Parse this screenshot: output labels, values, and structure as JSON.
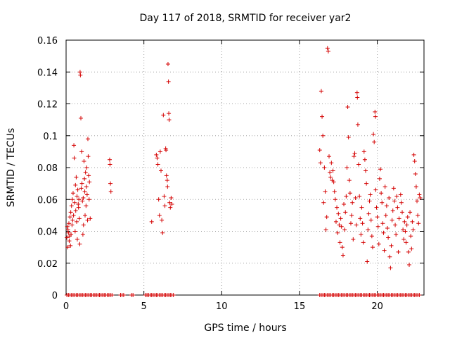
{
  "chart_data": {
    "type": "scatter",
    "title": "Day 117 of 2018, SRMTID for receiver yar2",
    "xlabel": "GPS time / hours",
    "ylabel": "SRMTID / TECUs",
    "xlim": [
      0,
      23
    ],
    "ylim": [
      0,
      0.16
    ],
    "x_ticks": [
      0,
      5,
      10,
      15,
      20
    ],
    "x_tick_labels": [
      "0",
      "5",
      "10",
      "15",
      "20"
    ],
    "y_ticks": [
      0,
      0.02,
      0.04,
      0.06,
      0.08,
      0.1,
      0.12,
      0.14,
      0.16
    ],
    "y_tick_labels": [
      "0",
      "0.02",
      "0.04",
      "0.06",
      "0.08",
      "0.1",
      "0.12",
      "0.14",
      "0.16"
    ],
    "grid": true,
    "marker": "+",
    "series": [
      {
        "name": "yar2",
        "color": "#d40000",
        "points": [
          [
            0.05,
            0.036
          ],
          [
            0.08,
            0.043
          ],
          [
            0.1,
            0.03
          ],
          [
            0.12,
            0.041
          ],
          [
            0.15,
            0.039
          ],
          [
            0.18,
            0.045
          ],
          [
            0.2,
            0.034
          ],
          [
            0.22,
            0.037
          ],
          [
            0.25,
            0.049
          ],
          [
            0.28,
            0.031
          ],
          [
            0.3,
            0.052
          ],
          [
            0.32,
            0.038
          ],
          [
            0.35,
            0.056
          ],
          [
            0.38,
            0.044
          ],
          [
            0.4,
            0.06
          ],
          [
            0.42,
            0.047
          ],
          [
            0.45,
            0.064
          ],
          [
            0.48,
            0.05
          ],
          [
            0.5,
            0.094
          ],
          [
            0.52,
            0.086
          ],
          [
            0.55,
            0.058
          ],
          [
            0.58,
            0.04
          ],
          [
            0.6,
            0.069
          ],
          [
            0.62,
            0.053
          ],
          [
            0.65,
            0.074
          ],
          [
            0.68,
            0.046
          ],
          [
            0.7,
            0.062
          ],
          [
            0.72,
            0.035
          ],
          [
            0.75,
            0.066
          ],
          [
            0.78,
            0.057
          ],
          [
            0.8,
            0.055
          ],
          [
            0.82,
            0.06
          ],
          [
            0.85,
            0.048
          ],
          [
            0.88,
            0.032
          ],
          [
            0.9,
            0.14
          ],
          [
            0.92,
            0.138
          ],
          [
            0.95,
            0.111
          ],
          [
            0.97,
            0.067
          ],
          [
            1.0,
            0.09
          ],
          [
            1.02,
            0.07
          ],
          [
            1.05,
            0.059
          ],
          [
            1.08,
            0.038
          ],
          [
            1.1,
            0.061
          ],
          [
            1.12,
            0.044
          ],
          [
            1.15,
            0.084
          ],
          [
            1.18,
            0.073
          ],
          [
            1.2,
            0.065
          ],
          [
            1.22,
            0.05
          ],
          [
            1.25,
            0.077
          ],
          [
            1.28,
            0.056
          ],
          [
            1.3,
            0.068
          ],
          [
            1.32,
            0.08
          ],
          [
            1.35,
            0.063
          ],
          [
            1.38,
            0.047
          ],
          [
            1.4,
            0.098
          ],
          [
            1.42,
            0.087
          ],
          [
            1.45,
            0.075
          ],
          [
            1.48,
            0.06
          ],
          [
            1.5,
            0.071
          ],
          [
            1.55,
            0.048
          ],
          [
            2.8,
            0.085
          ],
          [
            2.82,
            0.082
          ],
          [
            2.85,
            0.07
          ],
          [
            2.88,
            0.065
          ],
          [
            5.5,
            0.046
          ],
          [
            5.8,
            0.088
          ],
          [
            5.85,
            0.086
          ],
          [
            5.9,
            0.082
          ],
          [
            5.95,
            0.06
          ],
          [
            6.0,
            0.05
          ],
          [
            6.05,
            0.09
          ],
          [
            6.1,
            0.078
          ],
          [
            6.15,
            0.047
          ],
          [
            6.2,
            0.039
          ],
          [
            6.25,
            0.113
          ],
          [
            6.3,
            0.062
          ],
          [
            6.35,
            0.056
          ],
          [
            6.4,
            0.092
          ],
          [
            6.42,
            0.091
          ],
          [
            6.45,
            0.075
          ],
          [
            6.5,
            0.072
          ],
          [
            6.52,
            0.068
          ],
          [
            6.55,
            0.145
          ],
          [
            6.58,
            0.134
          ],
          [
            6.6,
            0.114
          ],
          [
            6.62,
            0.11
          ],
          [
            6.65,
            0.058
          ],
          [
            6.7,
            0.055
          ],
          [
            6.75,
            0.061
          ],
          [
            6.8,
            0.057
          ],
          [
            16.3,
            0.091
          ],
          [
            16.35,
            0.083
          ],
          [
            16.4,
            0.128
          ],
          [
            16.45,
            0.112
          ],
          [
            16.5,
            0.1
          ],
          [
            16.55,
            0.058
          ],
          [
            16.6,
            0.08
          ],
          [
            16.65,
            0.065
          ],
          [
            16.7,
            0.041
          ],
          [
            16.75,
            0.049
          ],
          [
            16.8,
            0.155
          ],
          [
            16.85,
            0.153
          ],
          [
            16.9,
            0.087
          ],
          [
            16.95,
            0.077
          ],
          [
            17.0,
            0.074
          ],
          [
            17.05,
            0.083
          ],
          [
            17.1,
            0.072
          ],
          [
            17.15,
            0.078
          ],
          [
            17.2,
            0.071
          ],
          [
            17.25,
            0.065
          ],
          [
            17.3,
            0.06
          ],
          [
            17.35,
            0.046
          ],
          [
            17.4,
            0.055
          ],
          [
            17.45,
            0.039
          ],
          [
            17.5,
            0.051
          ],
          [
            17.55,
            0.044
          ],
          [
            17.6,
            0.033
          ],
          [
            17.65,
            0.048
          ],
          [
            17.7,
            0.043
          ],
          [
            17.75,
            0.03
          ],
          [
            17.8,
            0.025
          ],
          [
            17.85,
            0.057
          ],
          [
            17.9,
            0.041
          ],
          [
            17.95,
            0.052
          ],
          [
            18.0,
            0.062
          ],
          [
            18.05,
            0.08
          ],
          [
            18.1,
            0.118
          ],
          [
            18.15,
            0.099
          ],
          [
            18.2,
            0.072
          ],
          [
            18.25,
            0.064
          ],
          [
            18.3,
            0.045
          ],
          [
            18.35,
            0.05
          ],
          [
            18.4,
            0.058
          ],
          [
            18.45,
            0.035
          ],
          [
            18.5,
            0.087
          ],
          [
            18.55,
            0.089
          ],
          [
            18.6,
            0.061
          ],
          [
            18.65,
            0.044
          ],
          [
            18.7,
            0.127
          ],
          [
            18.72,
            0.124
          ],
          [
            18.75,
            0.107
          ],
          [
            18.8,
            0.082
          ],
          [
            18.85,
            0.062
          ],
          [
            18.9,
            0.048
          ],
          [
            18.95,
            0.038
          ],
          [
            19.0,
            0.055
          ],
          [
            19.05,
            0.045
          ],
          [
            19.1,
            0.033
          ],
          [
            19.15,
            0.09
          ],
          [
            19.2,
            0.085
          ],
          [
            19.25,
            0.078
          ],
          [
            19.3,
            0.07
          ],
          [
            19.35,
            0.021
          ],
          [
            19.4,
            0.041
          ],
          [
            19.45,
            0.051
          ],
          [
            19.5,
            0.059
          ],
          [
            19.55,
            0.063
          ],
          [
            19.6,
            0.047
          ],
          [
            19.65,
            0.037
          ],
          [
            19.7,
            0.03
          ],
          [
            19.75,
            0.101
          ],
          [
            19.8,
            0.096
          ],
          [
            19.85,
            0.115
          ],
          [
            19.88,
            0.112
          ],
          [
            19.9,
            0.066
          ],
          [
            19.95,
            0.055
          ],
          [
            20.0,
            0.049
          ],
          [
            20.05,
            0.043
          ],
          [
            20.1,
            0.032
          ],
          [
            20.15,
            0.073
          ],
          [
            20.2,
            0.079
          ],
          [
            20.25,
            0.064
          ],
          [
            20.3,
            0.058
          ],
          [
            20.35,
            0.045
          ],
          [
            20.4,
            0.039
          ],
          [
            20.45,
            0.028
          ],
          [
            20.5,
            0.068
          ],
          [
            20.55,
            0.05
          ],
          [
            20.6,
            0.056
          ],
          [
            20.65,
            0.042
          ],
          [
            20.7,
            0.036
          ],
          [
            20.75,
            0.061
          ],
          [
            20.8,
            0.024
          ],
          [
            20.85,
            0.017
          ],
          [
            20.9,
            0.031
          ],
          [
            20.95,
            0.047
          ],
          [
            21.0,
            0.053
          ],
          [
            21.05,
            0.067
          ],
          [
            21.1,
            0.059
          ],
          [
            21.15,
            0.044
          ],
          [
            21.2,
            0.038
          ],
          [
            21.25,
            0.062
          ],
          [
            21.3,
            0.055
          ],
          [
            21.35,
            0.027
          ],
          [
            21.4,
            0.048
          ],
          [
            21.5,
            0.063
          ],
          [
            21.55,
            0.058
          ],
          [
            21.6,
            0.052
          ],
          [
            21.65,
            0.041
          ],
          [
            21.7,
            0.035
          ],
          [
            21.75,
            0.046
          ],
          [
            21.8,
            0.04
          ],
          [
            21.85,
            0.033
          ],
          [
            21.9,
            0.044
          ],
          [
            21.95,
            0.049
          ],
          [
            22.0,
            0.027
          ],
          [
            22.05,
            0.019
          ],
          [
            22.1,
            0.052
          ],
          [
            22.15,
            0.037
          ],
          [
            22.2,
            0.029
          ],
          [
            22.25,
            0.046
          ],
          [
            22.3,
            0.041
          ],
          [
            22.35,
            0.088
          ],
          [
            22.4,
            0.084
          ],
          [
            22.45,
            0.076
          ],
          [
            22.5,
            0.068
          ],
          [
            22.55,
            0.059
          ],
          [
            22.6,
            0.05
          ],
          [
            22.65,
            0.045
          ],
          [
            22.7,
            0.063
          ],
          [
            22.75,
            0.061
          ]
        ],
        "zero_points_x": [
          0.05,
          0.15,
          0.25,
          0.35,
          0.45,
          0.55,
          0.65,
          0.75,
          0.85,
          0.95,
          1.05,
          1.15,
          1.25,
          1.35,
          1.45,
          1.55,
          1.65,
          1.75,
          1.85,
          1.95,
          2.05,
          2.15,
          2.25,
          2.35,
          2.45,
          2.55,
          2.65,
          2.75,
          2.85,
          2.95,
          3.5,
          3.6,
          3.7,
          4.2,
          4.3,
          5.1,
          5.2,
          5.3,
          5.4,
          5.5,
          5.6,
          5.7,
          5.8,
          5.9,
          6.0,
          6.1,
          6.2,
          6.3,
          6.4,
          6.5,
          6.6,
          6.7,
          6.8,
          6.9,
          16.3,
          16.4,
          16.5,
          16.6,
          16.7,
          16.8,
          16.9,
          17.0,
          17.1,
          17.2,
          17.3,
          17.4,
          17.5,
          17.6,
          17.7,
          17.8,
          17.9,
          18.0,
          18.1,
          18.2,
          18.3,
          18.4,
          18.5,
          18.6,
          18.7,
          18.8,
          18.9,
          19.0,
          19.1,
          19.2,
          19.3,
          19.4,
          19.5,
          19.6,
          19.7,
          19.8,
          19.9,
          20.0,
          20.1,
          20.2,
          20.3,
          20.4,
          20.5,
          20.6,
          20.7,
          20.8,
          20.9,
          21.0,
          21.1,
          21.2,
          21.3,
          21.4,
          21.5,
          21.6,
          21.7,
          21.8,
          21.9,
          22.0,
          22.1,
          22.2,
          22.3,
          22.4,
          22.5,
          22.6,
          22.7
        ]
      }
    ]
  }
}
